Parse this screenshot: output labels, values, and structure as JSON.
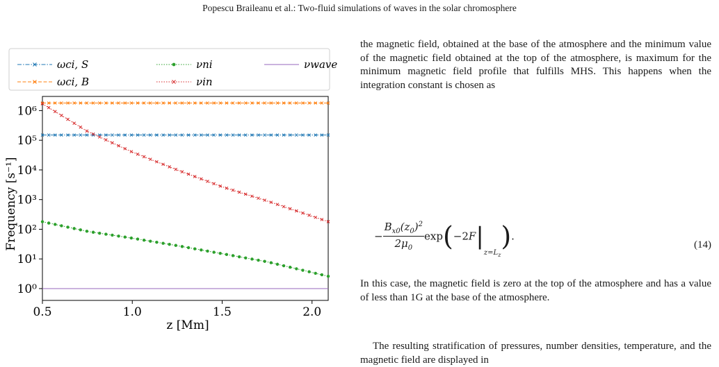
{
  "running_head": "Popescu Braileanu et al.: Two-fluid simulations of waves in the solar chromosphere",
  "text": {
    "para1": "the magnetic field, obtained at the base of the atmosphere and the minimum value of the magnetic field obtained at the top of the atmosphere, is maximum for the minimum magnetic field profile that fulfills MHS. This happens when the integration constant is chosen as",
    "equation_number": "(14)",
    "para2": "In this case, the magnetic field is zero at the top of the atmosphere and has a value of less than 1G at the base of the atmosphere.",
    "para3": "The resulting stratification of pressures, number densities, temperature, and the magnetic field are displayed in"
  },
  "chart_data": {
    "type": "line",
    "xlabel": "z [Mm]",
    "ylabel": "Frequency [s⁻¹]",
    "yscale": "log",
    "xlim": [
      0.5,
      2.09
    ],
    "ylim": [
      0.4,
      3000000
    ],
    "xticks": [
      "0.5",
      "1.0",
      "1.5",
      "2.0"
    ],
    "yticks": [
      "10⁰",
      "10¹",
      "10²",
      "10³",
      "10⁴",
      "10⁵",
      "10⁶"
    ],
    "legend_position": "top, above plot, 3 columns",
    "series": [
      {
        "name": "ωci, S",
        "color": "#1f77b4",
        "style": "dashdot",
        "marker": "x",
        "x": [
          0.5,
          2.09
        ],
        "y": [
          150000,
          150000
        ]
      },
      {
        "name": "ωci, B",
        "color": "#ff7f0e",
        "style": "dashed",
        "marker": "x",
        "x": [
          0.5,
          2.09
        ],
        "y": [
          1800000,
          1800000
        ]
      },
      {
        "name": "νni",
        "color": "#2ca02c",
        "style": "dotted",
        "marker": "dot",
        "x": [
          0.5,
          0.75,
          1.0,
          1.25,
          1.5,
          1.75,
          2.09
        ],
        "y": [
          180,
          85,
          50,
          28,
          15,
          8,
          2.6
        ]
      },
      {
        "name": "νin",
        "color": "#d62728",
        "style": "dotted",
        "marker": "x",
        "x": [
          0.5,
          0.75,
          1.0,
          1.25,
          1.5,
          1.75,
          2.09
        ],
        "y": [
          1700000,
          200000,
          40000,
          10000,
          2700,
          900,
          180
        ]
      },
      {
        "name": "νwave",
        "color": "#9467bd",
        "style": "solid",
        "marker": "none",
        "x": [
          0.5,
          2.09
        ],
        "y": [
          1,
          1
        ]
      }
    ]
  }
}
